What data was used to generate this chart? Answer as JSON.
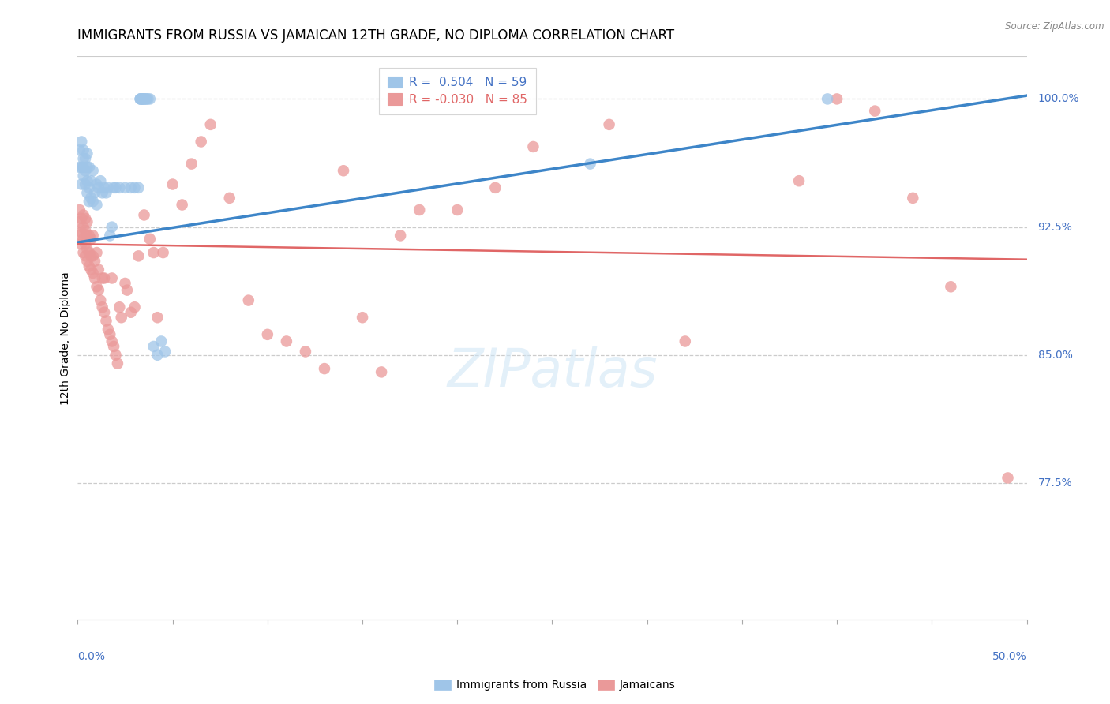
{
  "title": "IMMIGRANTS FROM RUSSIA VS JAMAICAN 12TH GRADE, NO DIPLOMA CORRELATION CHART",
  "source": "Source: ZipAtlas.com",
  "ylabel": "12th Grade, No Diploma",
  "y_tick_labels": [
    "100.0%",
    "92.5%",
    "85.0%",
    "77.5%"
  ],
  "y_tick_values": [
    1.0,
    0.925,
    0.85,
    0.775
  ],
  "xlim": [
    0.0,
    0.5
  ],
  "ylim": [
    0.695,
    1.025
  ],
  "blue_color": "#9fc5e8",
  "pink_color": "#ea9999",
  "blue_line_color": "#3d85c8",
  "pink_line_color": "#e06666",
  "title_fontsize": 12,
  "blue_x": [
    0.001,
    0.001,
    0.002,
    0.002,
    0.002,
    0.003,
    0.003,
    0.003,
    0.003,
    0.004,
    0.004,
    0.004,
    0.005,
    0.005,
    0.005,
    0.005,
    0.006,
    0.006,
    0.006,
    0.007,
    0.007,
    0.008,
    0.008,
    0.009,
    0.01,
    0.01,
    0.011,
    0.012,
    0.013,
    0.014,
    0.015,
    0.016,
    0.017,
    0.018,
    0.019,
    0.02,
    0.022,
    0.025,
    0.028,
    0.03,
    0.032,
    0.033,
    0.033,
    0.033,
    0.034,
    0.034,
    0.034,
    0.035,
    0.035,
    0.036,
    0.036,
    0.037,
    0.038,
    0.04,
    0.042,
    0.044,
    0.046,
    0.27,
    0.395
  ],
  "blue_y": [
    0.96,
    0.97,
    0.95,
    0.96,
    0.975,
    0.955,
    0.96,
    0.965,
    0.97,
    0.95,
    0.958,
    0.965,
    0.945,
    0.952,
    0.96,
    0.968,
    0.94,
    0.948,
    0.96,
    0.942,
    0.952,
    0.94,
    0.958,
    0.945,
    0.938,
    0.95,
    0.948,
    0.952,
    0.945,
    0.948,
    0.945,
    0.948,
    0.92,
    0.925,
    0.948,
    0.948,
    0.948,
    0.948,
    0.948,
    0.948,
    0.948,
    1.0,
    1.0,
    1.0,
    1.0,
    1.0,
    1.0,
    1.0,
    1.0,
    1.0,
    1.0,
    1.0,
    1.0,
    0.855,
    0.85,
    0.858,
    0.852,
    0.962,
    1.0
  ],
  "pink_x": [
    0.001,
    0.001,
    0.001,
    0.002,
    0.002,
    0.002,
    0.003,
    0.003,
    0.003,
    0.003,
    0.004,
    0.004,
    0.004,
    0.004,
    0.005,
    0.005,
    0.005,
    0.005,
    0.006,
    0.006,
    0.006,
    0.007,
    0.007,
    0.007,
    0.008,
    0.008,
    0.008,
    0.009,
    0.009,
    0.01,
    0.01,
    0.011,
    0.011,
    0.012,
    0.013,
    0.013,
    0.014,
    0.014,
    0.015,
    0.016,
    0.017,
    0.018,
    0.018,
    0.019,
    0.02,
    0.021,
    0.022,
    0.023,
    0.025,
    0.026,
    0.028,
    0.03,
    0.032,
    0.035,
    0.038,
    0.04,
    0.042,
    0.045,
    0.05,
    0.055,
    0.06,
    0.065,
    0.07,
    0.08,
    0.09,
    0.1,
    0.11,
    0.12,
    0.13,
    0.15,
    0.17,
    0.2,
    0.22,
    0.24,
    0.28,
    0.32,
    0.38,
    0.4,
    0.42,
    0.44,
    0.46,
    0.49,
    0.18,
    0.16,
    0.14
  ],
  "pink_y": [
    0.92,
    0.928,
    0.935,
    0.915,
    0.922,
    0.93,
    0.91,
    0.918,
    0.925,
    0.932,
    0.908,
    0.915,
    0.923,
    0.93,
    0.905,
    0.912,
    0.92,
    0.928,
    0.902,
    0.91,
    0.92,
    0.9,
    0.908,
    0.918,
    0.898,
    0.908,
    0.92,
    0.895,
    0.905,
    0.89,
    0.91,
    0.888,
    0.9,
    0.882,
    0.878,
    0.895,
    0.875,
    0.895,
    0.87,
    0.865,
    0.862,
    0.858,
    0.895,
    0.855,
    0.85,
    0.845,
    0.878,
    0.872,
    0.892,
    0.888,
    0.875,
    0.878,
    0.908,
    0.932,
    0.918,
    0.91,
    0.872,
    0.91,
    0.95,
    0.938,
    0.962,
    0.975,
    0.985,
    0.942,
    0.882,
    0.862,
    0.858,
    0.852,
    0.842,
    0.872,
    0.92,
    0.935,
    0.948,
    0.972,
    0.985,
    0.858,
    0.952,
    1.0,
    0.993,
    0.942,
    0.89,
    0.778,
    0.935,
    0.84,
    0.958
  ]
}
